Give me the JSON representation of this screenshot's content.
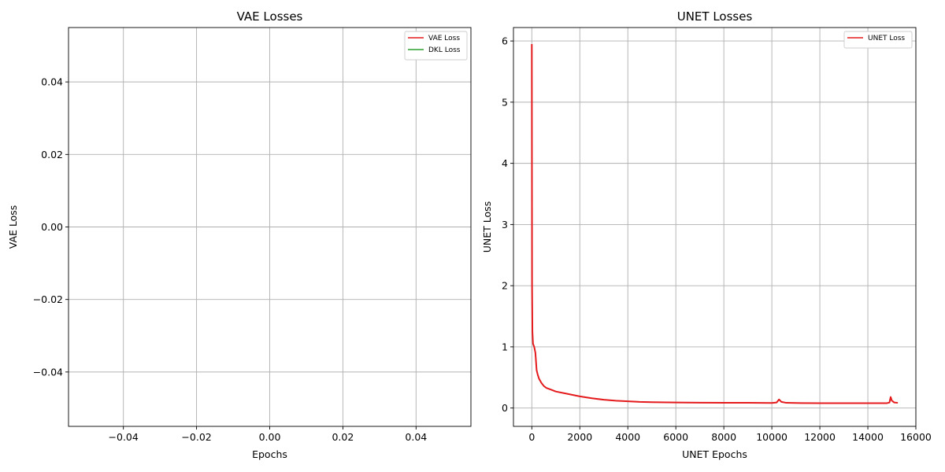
{
  "chart_data": [
    {
      "type": "line",
      "title": "VAE Losses",
      "xlabel": "Epochs",
      "ylabel": "VAE Loss",
      "xlim": [
        -0.055,
        0.055
      ],
      "ylim": [
        -0.055,
        0.055
      ],
      "xticks": [
        -0.04,
        -0.02,
        0.0,
        0.02,
        0.04
      ],
      "yticks": [
        -0.04,
        -0.02,
        0.0,
        0.02,
        0.04
      ],
      "xtick_labels": [
        "−0.04",
        "−0.02",
        "0.00",
        "0.02",
        "0.04"
      ],
      "ytick_labels": [
        "−0.04",
        "−0.02",
        "0.00",
        "0.02",
        "0.04"
      ],
      "grid": true,
      "legend_position": "top-right",
      "series": [
        {
          "name": "VAE Loss",
          "color": "#e41a1c",
          "x": [],
          "y": []
        },
        {
          "name": "DKL Loss",
          "color": "#2ca02c",
          "x": [],
          "y": []
        }
      ]
    },
    {
      "type": "line",
      "title": "UNET Losses",
      "xlabel": "UNET Epochs",
      "ylabel": "UNET Loss",
      "xlim": [
        -765,
        16000
      ],
      "ylim": [
        -0.3,
        6.22
      ],
      "xticks": [
        0,
        2000,
        4000,
        6000,
        8000,
        10000,
        12000,
        14000,
        16000
      ],
      "yticks": [
        0,
        1,
        2,
        3,
        4,
        5,
        6
      ],
      "xtick_labels": [
        "0",
        "2000",
        "4000",
        "6000",
        "8000",
        "10000",
        "12000",
        "14000",
        "16000"
      ],
      "ytick_labels": [
        "0",
        "1",
        "2",
        "3",
        "4",
        "5",
        "6"
      ],
      "grid": true,
      "legend_position": "top-right",
      "series": [
        {
          "name": "UNET Loss",
          "color": "#e41a1c",
          "x": [
            0,
            10,
            25,
            50,
            100,
            150,
            200,
            250,
            300,
            400,
            500,
            600,
            800,
            1000,
            1500,
            2000,
            2500,
            3000,
            3500,
            4000,
            4500,
            5000,
            6000,
            7000,
            8000,
            9000,
            10000,
            10200,
            10300,
            10400,
            10600,
            11000,
            12000,
            13000,
            14000,
            14800,
            14900,
            14950,
            15000,
            15100,
            15250
          ],
          "y": [
            5.95,
            2.0,
            1.25,
            1.05,
            1.0,
            0.9,
            0.62,
            0.54,
            0.48,
            0.41,
            0.36,
            0.33,
            0.3,
            0.27,
            0.23,
            0.19,
            0.16,
            0.135,
            0.12,
            0.11,
            0.1,
            0.095,
            0.09,
            0.088,
            0.086,
            0.085,
            0.082,
            0.09,
            0.14,
            0.1,
            0.085,
            0.082,
            0.08,
            0.08,
            0.08,
            0.08,
            0.09,
            0.18,
            0.12,
            0.09,
            0.085
          ]
        }
      ]
    }
  ]
}
